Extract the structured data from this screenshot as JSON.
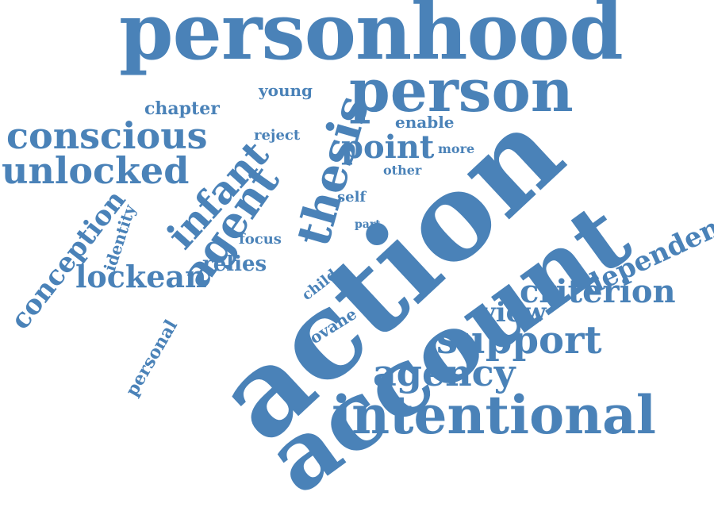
{
  "color": "#4a82b8",
  "words": {
    "personhood": "personhood",
    "person": "person",
    "thesis": "thesis",
    "action": "action",
    "account": "account",
    "intentional": "intentional",
    "agency": "agency",
    "support": "support",
    "criterion": "criterion",
    "dependent": "dependent",
    "view": "view",
    "conscious": "conscious",
    "unlocked": "unlocked",
    "infant": "infant",
    "agent": "agent",
    "conception": "conception",
    "lockean": "lockean",
    "relies": "relies",
    "identity": "identity",
    "personal": "personal",
    "point": "point",
    "chapter": "chapter",
    "young": "young",
    "reject": "reject",
    "enable": "enable",
    "more": "more",
    "other": "other",
    "self": "self",
    "part": "part",
    "focus": "focus",
    "child": "child",
    "rovane": "rovane"
  }
}
